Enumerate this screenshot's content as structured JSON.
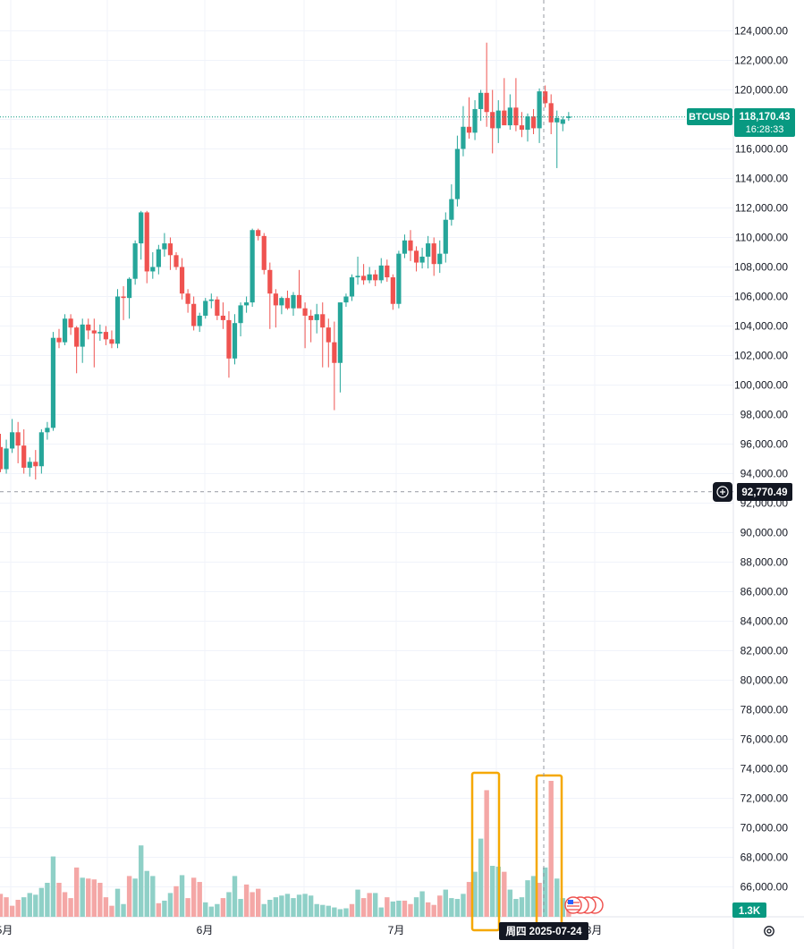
{
  "symbol": "BTCUSD",
  "current_price": "118,170.43",
  "countdown": "16:28:33",
  "crosshair_price": "92,770.49",
  "crosshair_date": "周四 2025-07-24",
  "volume_label": "1.3K",
  "colors": {
    "up": "#26a69a",
    "down": "#ef5350",
    "up_volume": "#8fd0c7",
    "down_volume": "#f4a7a6",
    "highlight_box": "#f5a800",
    "label_bg": "#131722",
    "price_tag_bg": "#089981",
    "grid": "#f0f3fa"
  },
  "icons": {
    "crosshair_add": "plus-circle-icon",
    "events": "us-flag-icon",
    "settings": "gear-icon"
  },
  "chart_data": {
    "type": "candlestick",
    "symbol": "BTCUSD",
    "y_ticks": [
      "124,000.00",
      "122,000.00",
      "120,000.00",
      "118,000.00",
      "116,000.00",
      "114,000.00",
      "112,000.00",
      "110,000.00",
      "108,000.00",
      "106,000.00",
      "104,000.00",
      "102,000.00",
      "100,000.00",
      "98,000.00",
      "96,000.00",
      "94,000.00",
      "92,000.00",
      "90,000.00",
      "88,000.00",
      "86,000.00",
      "84,000.00",
      "82,000.00",
      "80,000.00",
      "78,000.00",
      "76,000.00",
      "74,000.00",
      "72,000.00",
      "70,000.00",
      "68,000.00",
      "66,000.00"
    ],
    "x_ticks": [
      "5月",
      "6月",
      "7月",
      "8月"
    ],
    "y_range": [
      64000,
      126000
    ],
    "grid": true,
    "candles": [
      [
        95800,
        96700,
        94100,
        94300
      ],
      [
        94300,
        96300,
        94000,
        95700
      ],
      [
        95700,
        97700,
        95400,
        96800
      ],
      [
        96800,
        97500,
        94700,
        95900
      ],
      [
        95900,
        97000,
        94000,
        94400
      ],
      [
        94400,
        95100,
        93800,
        94800
      ],
      [
        94800,
        95600,
        93600,
        94500
      ],
      [
        94500,
        97000,
        94000,
        96800
      ],
      [
        96800,
        97500,
        96300,
        97100
      ],
      [
        97100,
        103600,
        96900,
        103200
      ],
      [
        103200,
        103800,
        102500,
        102900
      ],
      [
        102900,
        104800,
        102700,
        104500
      ],
      [
        104500,
        104800,
        103400,
        103900
      ],
      [
        103900,
        104000,
        100800,
        102600
      ],
      [
        102600,
        104500,
        101500,
        104100
      ],
      [
        104100,
        104500,
        103100,
        103700
      ],
      [
        103700,
        104500,
        101200,
        103500
      ],
      [
        103500,
        104100,
        103000,
        103600
      ],
      [
        103600,
        104000,
        102700,
        103100
      ],
      [
        103100,
        103700,
        102500,
        102800
      ],
      [
        102800,
        106500,
        102500,
        106000
      ],
      [
        106000,
        106700,
        104400,
        105900
      ],
      [
        105900,
        107300,
        104500,
        107200
      ],
      [
        107200,
        109800,
        106800,
        109600
      ],
      [
        109600,
        111800,
        108500,
        111700
      ],
      [
        111700,
        111800,
        106900,
        107700
      ],
      [
        107700,
        109000,
        107200,
        108000
      ],
      [
        108000,
        109500,
        107500,
        109200
      ],
      [
        109200,
        110300,
        108700,
        109600
      ],
      [
        109600,
        110000,
        107800,
        108800
      ],
      [
        108800,
        109000,
        107800,
        108000
      ],
      [
        108000,
        108600,
        105800,
        106200
      ],
      [
        106200,
        106500,
        104900,
        105500
      ],
      [
        105500,
        106000,
        103700,
        104000
      ],
      [
        104000,
        104900,
        103600,
        104700
      ],
      [
        104700,
        105900,
        104500,
        105700
      ],
      [
        105700,
        106200,
        105200,
        105800
      ],
      [
        105800,
        106000,
        104400,
        104700
      ],
      [
        104700,
        105600,
        103800,
        104400
      ],
      [
        104400,
        105000,
        100500,
        101800
      ],
      [
        101800,
        104800,
        101400,
        104200
      ],
      [
        104200,
        105600,
        103300,
        105400
      ],
      [
        105400,
        106000,
        104900,
        105600
      ],
      [
        105600,
        110600,
        105300,
        110500
      ],
      [
        110500,
        110600,
        109800,
        110100
      ],
      [
        110100,
        110300,
        107500,
        107800
      ],
      [
        107800,
        108300,
        103800,
        106200
      ],
      [
        106200,
        106500,
        103900,
        105400
      ],
      [
        105400,
        106000,
        104800,
        105900
      ],
      [
        105900,
        106400,
        105100,
        105200
      ],
      [
        105200,
        106300,
        104700,
        106100
      ],
      [
        106100,
        107800,
        105700,
        105200
      ],
      [
        105200,
        105600,
        102500,
        104700
      ],
      [
        104700,
        105100,
        102900,
        104400
      ],
      [
        104400,
        105500,
        103500,
        104800
      ],
      [
        104800,
        105600,
        101200,
        103900
      ],
      [
        103900,
        104500,
        101200,
        102900
      ],
      [
        102900,
        104300,
        98300,
        101500
      ],
      [
        101500,
        105600,
        99500,
        105600
      ],
      [
        105600,
        106200,
        105300,
        106000
      ],
      [
        106000,
        107500,
        105700,
        107300
      ],
      [
        107300,
        108700,
        106800,
        107400
      ],
      [
        107400,
        108200,
        106800,
        107100
      ],
      [
        107100,
        108000,
        106900,
        107500
      ],
      [
        107500,
        107800,
        106700,
        107100
      ],
      [
        107100,
        108600,
        106900,
        108100
      ],
      [
        108100,
        108500,
        107000,
        107300
      ],
      [
        107300,
        107500,
        105100,
        105500
      ],
      [
        105500,
        109100,
        105200,
        108900
      ],
      [
        108900,
        110200,
        108600,
        109800
      ],
      [
        109800,
        110500,
        108400,
        109100
      ],
      [
        109100,
        109400,
        107700,
        108300
      ],
      [
        108300,
        109300,
        107900,
        108700
      ],
      [
        108700,
        110100,
        107900,
        109600
      ],
      [
        109600,
        110000,
        107400,
        108200
      ],
      [
        108200,
        109800,
        107600,
        108900
      ],
      [
        108900,
        111700,
        108300,
        111200
      ],
      [
        111200,
        113600,
        110800,
        112600
      ],
      [
        112600,
        116900,
        112100,
        116000
      ],
      [
        116000,
        118900,
        115500,
        117500
      ],
      [
        117500,
        119500,
        116700,
        117100
      ],
      [
        117100,
        119300,
        116600,
        118700
      ],
      [
        118700,
        120000,
        117900,
        119800
      ],
      [
        119800,
        123200,
        117500,
        118500
      ],
      [
        118500,
        120000,
        115700,
        117400
      ],
      [
        117400,
        119300,
        116400,
        118600
      ],
      [
        118600,
        120800,
        117700,
        117600
      ],
      [
        117600,
        119700,
        117300,
        118800
      ],
      [
        118800,
        120800,
        117200,
        117600
      ],
      [
        117600,
        118500,
        116800,
        117300
      ],
      [
        117300,
        118400,
        116500,
        118200
      ],
      [
        118200,
        118700,
        117000,
        117400
      ],
      [
        117400,
        120100,
        116400,
        119900
      ],
      [
        119900,
        120300,
        118800,
        119100
      ],
      [
        119100,
        119700,
        117000,
        117800
      ],
      [
        117800,
        118600,
        114700,
        118100
      ],
      [
        117700,
        118200,
        117200,
        118000
      ],
      [
        118100,
        118500,
        117900,
        118200
      ]
    ],
    "volume": [
      [
        27,
        "down"
      ],
      [
        23,
        "down"
      ],
      [
        13,
        "down"
      ],
      [
        20,
        "down"
      ],
      [
        23,
        "up"
      ],
      [
        28,
        "up"
      ],
      [
        26,
        "up"
      ],
      [
        34,
        "up"
      ],
      [
        40,
        "up"
      ],
      [
        71,
        "up"
      ],
      [
        40,
        "down"
      ],
      [
        29,
        "down"
      ],
      [
        22,
        "down"
      ],
      [
        58,
        "down"
      ],
      [
        46,
        "up"
      ],
      [
        45,
        "down"
      ],
      [
        44,
        "down"
      ],
      [
        40,
        "down"
      ],
      [
        23,
        "down"
      ],
      [
        13,
        "down"
      ],
      [
        33,
        "up"
      ],
      [
        15,
        "up"
      ],
      [
        48,
        "down"
      ],
      [
        45,
        "up"
      ],
      [
        84,
        "up"
      ],
      [
        54,
        "up"
      ],
      [
        48,
        "up"
      ],
      [
        16,
        "down"
      ],
      [
        19,
        "up"
      ],
      [
        28,
        "up"
      ],
      [
        36,
        "down"
      ],
      [
        49,
        "up"
      ],
      [
        22,
        "down"
      ],
      [
        46,
        "down"
      ],
      [
        41,
        "down"
      ],
      [
        17,
        "up"
      ],
      [
        12,
        "up"
      ],
      [
        15,
        "up"
      ],
      [
        22,
        "down"
      ],
      [
        29,
        "up"
      ],
      [
        48,
        "up"
      ],
      [
        21,
        "up"
      ],
      [
        38,
        "down"
      ],
      [
        29,
        "down"
      ],
      [
        33,
        "down"
      ],
      [
        15,
        "up"
      ],
      [
        20,
        "up"
      ],
      [
        23,
        "up"
      ],
      [
        25,
        "up"
      ],
      [
        27,
        "up"
      ],
      [
        22,
        "up"
      ],
      [
        26,
        "up"
      ],
      [
        27,
        "up"
      ],
      [
        25,
        "up"
      ],
      [
        15,
        "up"
      ],
      [
        14,
        "up"
      ],
      [
        13,
        "up"
      ],
      [
        11,
        "up"
      ],
      [
        9,
        "up"
      ],
      [
        10,
        "up"
      ],
      [
        15,
        "down"
      ],
      [
        32,
        "up"
      ],
      [
        22,
        "down"
      ],
      [
        28,
        "down"
      ],
      [
        28,
        "up"
      ],
      [
        11,
        "up"
      ],
      [
        23,
        "down"
      ],
      [
        18,
        "up"
      ],
      [
        19,
        "up"
      ],
      [
        19,
        "down"
      ],
      [
        15,
        "down"
      ],
      [
        23,
        "up"
      ],
      [
        30,
        "up"
      ],
      [
        17,
        "down"
      ],
      [
        14,
        "down"
      ],
      [
        25,
        "down"
      ],
      [
        32,
        "up"
      ],
      [
        22,
        "up"
      ],
      [
        21,
        "up"
      ],
      [
        27,
        "up"
      ],
      [
        41,
        "down"
      ],
      [
        53,
        "up"
      ],
      [
        92,
        "up"
      ],
      [
        149,
        "down"
      ],
      [
        60,
        "up"
      ],
      [
        59,
        "up"
      ],
      [
        53,
        "down"
      ],
      [
        32,
        "up"
      ],
      [
        21,
        "up"
      ],
      [
        23,
        "up"
      ],
      [
        43,
        "up"
      ],
      [
        48,
        "up"
      ],
      [
        40,
        "down"
      ],
      [
        58,
        "up"
      ],
      [
        160,
        "down"
      ],
      [
        45,
        "up"
      ],
      [
        22,
        "up"
      ],
      [
        10,
        "down"
      ]
    ]
  }
}
